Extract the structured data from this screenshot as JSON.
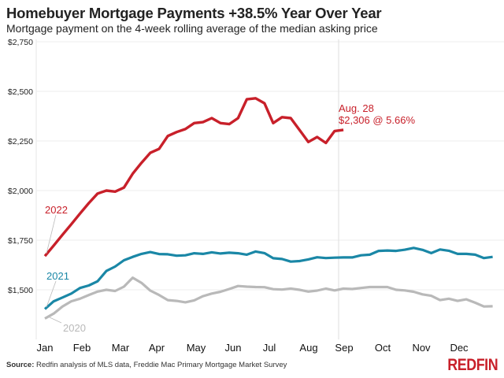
{
  "header": {
    "title": "Homebuyer Mortgage Payments +38.5% Year Over Year",
    "subtitle": "Mortgage payment on the 4-week rolling average of the median asking price"
  },
  "footer": {
    "source_label": "Source:",
    "source_text": " Redfin analysis of MLS data, Freddie Mac Primary Mortgage Market Survey",
    "logo": "REDFIN"
  },
  "chart_data": {
    "type": "line",
    "title": "Homebuyer Mortgage Payments +38.5% Year Over Year",
    "subtitle": "Mortgage payment on the 4-week rolling average of the median asking price",
    "x_tick_labels": [
      "Jan",
      "Feb",
      "Mar",
      "Apr",
      "May",
      "Jun",
      "Jul",
      "Aug",
      "Sep",
      "Oct",
      "Nov",
      "Dec"
    ],
    "y_ticks": [
      1500,
      1750,
      2000,
      2250,
      2500,
      2750
    ],
    "y_tick_labels": [
      "$1,500",
      "$1,750",
      "$2,000",
      "$2,250",
      "$2,500",
      "$2,750"
    ],
    "ylim": [
      1250,
      2750
    ],
    "grid": "horizontal",
    "x_frequency": "weekly, starting early January",
    "series": [
      {
        "name": "2022",
        "color": "#c8202a",
        "values": [
          1670,
          1723,
          1777,
          1830,
          1884,
          1937,
          1985,
          2000,
          1995,
          2015,
          2085,
          2140,
          2190,
          2210,
          2275,
          2295,
          2310,
          2340,
          2345,
          2365,
          2340,
          2335,
          2365,
          2460,
          2465,
          2440,
          2340,
          2370,
          2365,
          2305,
          2245,
          2270,
          2240,
          2300,
          2306
        ]
      },
      {
        "name": "2021",
        "color": "#1a87a6",
        "values": [
          1403,
          1442,
          1461,
          1481,
          1509,
          1522,
          1543,
          1595,
          1617,
          1649,
          1666,
          1681,
          1690,
          1680,
          1679,
          1672,
          1674,
          1684,
          1681,
          1689,
          1683,
          1687,
          1684,
          1677,
          1693,
          1685,
          1659,
          1655,
          1642,
          1645,
          1653,
          1664,
          1660,
          1662,
          1663,
          1663,
          1674,
          1677,
          1696,
          1698,
          1696,
          1702,
          1711,
          1701,
          1685,
          1703,
          1697,
          1681,
          1681,
          1677,
          1660,
          1666
        ]
      },
      {
        "name": "2020",
        "color": "#b9b9b9",
        "values": [
          1355,
          1380,
          1416,
          1442,
          1455,
          1474,
          1491,
          1500,
          1494,
          1516,
          1561,
          1535,
          1496,
          1474,
          1448,
          1444,
          1437,
          1447,
          1468,
          1481,
          1490,
          1504,
          1519,
          1516,
          1514,
          1513,
          1503,
          1501,
          1506,
          1500,
          1491,
          1496,
          1506,
          1497,
          1506,
          1504,
          1509,
          1514,
          1514,
          1514,
          1500,
          1497,
          1490,
          1477,
          1470,
          1448,
          1455,
          1444,
          1452,
          1435,
          1416,
          1417
        ]
      }
    ],
    "annotations": {
      "date": "Aug. 28",
      "value": "$2,306 @ 5.66%"
    }
  }
}
